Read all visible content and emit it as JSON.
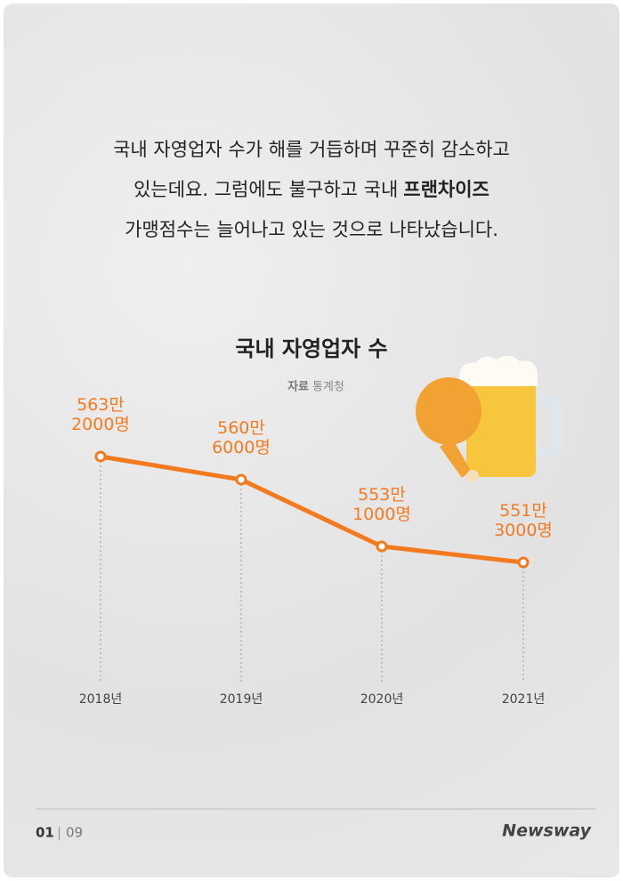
{
  "intro": [
    "국내 자영업자 수가 해를 거듭하며 꾸준히 감소하고",
    "있는데요. 그럼에도 불구하고 국내",
    "가맹점수는 늘어나고 있는 것으로 나타났습니다."
  ],
  "intro_bold": "프랜차이즈",
  "chart_data": {
    "type": "line",
    "title": "국내 자영업자 수",
    "source_label": "자료",
    "source": "통계청",
    "categories": [
      "2018년",
      "2019년",
      "2020년",
      "2021년"
    ],
    "values": [
      5632000,
      5606000,
      5531000,
      5513000
    ],
    "value_labels": [
      "563만 2000명",
      "560만 6000명",
      "553만 1000명",
      "551만 3000명"
    ],
    "color": "#f47a20",
    "ylim": [
      5450000,
      5700000
    ],
    "grid": false
  },
  "footer": {
    "page": "01",
    "total": "09",
    "logo": "Newsway"
  }
}
